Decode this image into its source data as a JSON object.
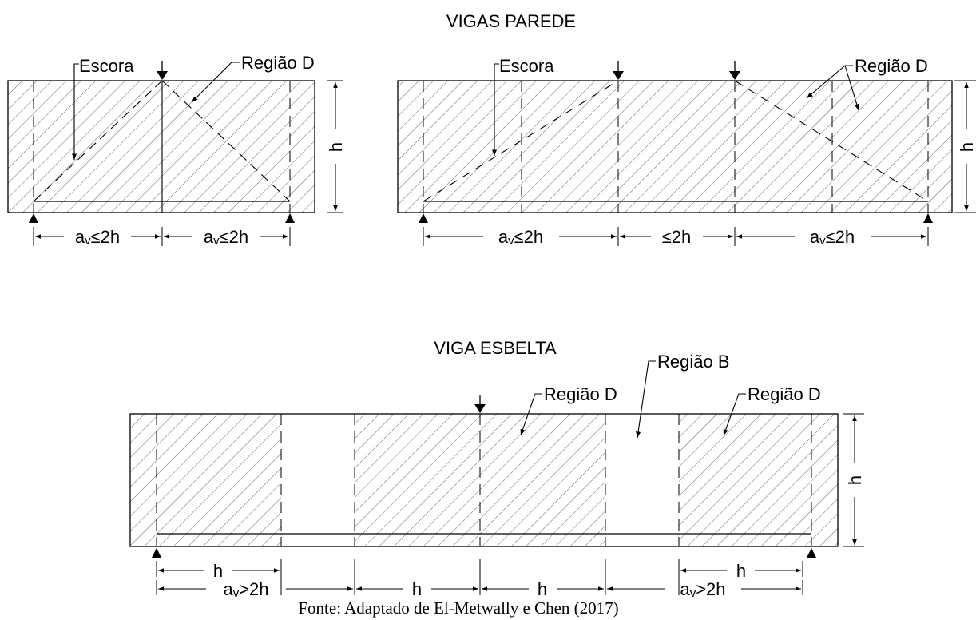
{
  "titles": {
    "deep_beams": "VIGAS PAREDE",
    "slender_beam": "VIGA ESBELTA"
  },
  "labels": {
    "strut": "Escora",
    "region_d": "Região D",
    "region_b": "Região B",
    "height": "h"
  },
  "dimensions": {
    "av_le_2h": [
      "a",
      "v",
      "≤2h"
    ],
    "le_2h": "≤2h",
    "av_gt_2h": [
      "a",
      "v",
      ">2h"
    ],
    "h": "h"
  },
  "source": "Fonte: Adaptado de El-Metwally e Chen (2017)"
}
